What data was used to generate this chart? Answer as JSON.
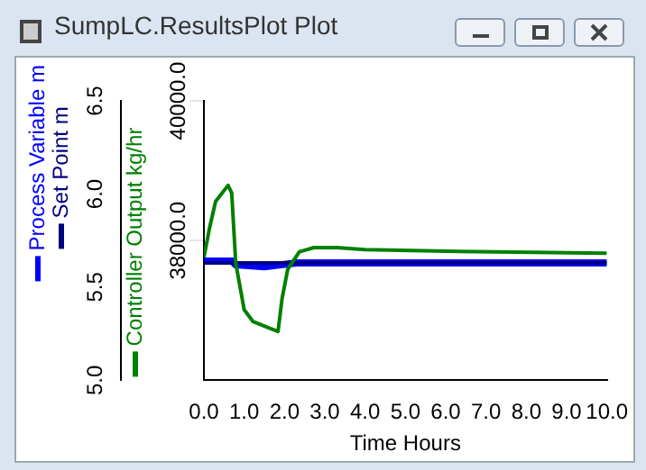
{
  "chart_data": {
    "type": "line",
    "title": "SumpLC.ResultsPlot Plot",
    "xlabel": "Time Hours",
    "xlim": [
      0,
      10
    ],
    "xticks": [
      {
        "value": 0,
        "label": "0.0"
      },
      {
        "value": 1,
        "label": "1.0"
      },
      {
        "value": 2,
        "label": "2.0"
      },
      {
        "value": 3,
        "label": "3.0"
      },
      {
        "value": 4,
        "label": "4.0"
      },
      {
        "value": 5,
        "label": "5.0"
      },
      {
        "value": 6,
        "label": "6.0"
      },
      {
        "value": 7,
        "label": "7.0"
      },
      {
        "value": 8,
        "label": "8.0"
      },
      {
        "value": 9,
        "label": "9.0"
      },
      {
        "value": 10,
        "label": "10.0"
      }
    ],
    "ylim": [
      5.0,
      6.5
    ],
    "yticks": [
      {
        "value": 5,
        "label": "5.0"
      },
      {
        "value": 5.5,
        "label": "5.5"
      },
      {
        "value": 6,
        "label": "6.0"
      },
      {
        "value": 6.5,
        "label": "6.5"
      }
    ],
    "y2lim": [
      36000,
      40000
    ],
    "y2ticks": [
      {
        "value": 38000,
        "label": "38000.0"
      },
      {
        "value": 40000,
        "label": "40000.0"
      }
    ],
    "legend": "left",
    "grid": false,
    "series": [
      {
        "name": "Process Variable m",
        "color": "#0000ff",
        "x": [
          0,
          0.7,
          0.79,
          1.5,
          1.9,
          2.3,
          10
        ],
        "values": [
          5.64,
          5.64,
          5.62,
          5.61,
          5.62,
          5.63,
          5.63
        ]
      },
      {
        "name": "Set Point m",
        "color": "#000080",
        "x": [
          0,
          10
        ],
        "values": [
          5.63,
          5.63
        ]
      },
      {
        "name": "Controller Output kg/hr",
        "color": "#008000",
        "axis": "y2",
        "x": [
          0,
          0.14,
          0.29,
          0.6,
          0.69,
          0.79,
          1.0,
          1.22,
          1.65,
          1.84,
          1.94,
          2.08,
          2.37,
          2.73,
          3.3,
          4.0,
          5.75,
          10
        ],
        "values": [
          37760,
          38180,
          38560,
          38790,
          38680,
          37680,
          37010,
          36840,
          36740,
          36700,
          37170,
          37590,
          37840,
          37900,
          37900,
          37870,
          37850,
          37820
        ]
      }
    ]
  }
}
